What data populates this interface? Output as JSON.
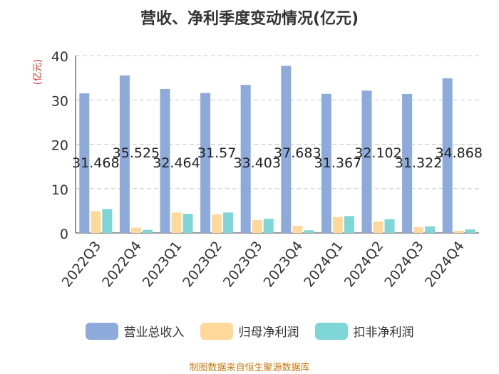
{
  "chart_data": {
    "type": "bar",
    "title": "营收、净利季度变动情况(亿元)",
    "ylabel": "(亿元)",
    "ylim": [
      0,
      40
    ],
    "yticks": [
      0,
      10,
      20,
      30,
      40
    ],
    "grid": true,
    "legend_position": "bottom",
    "categories": [
      "2022Q3",
      "2022Q4",
      "2023Q1",
      "2023Q2",
      "2023Q3",
      "2023Q4",
      "2024Q1",
      "2024Q2",
      "2024Q3",
      "2024Q4"
    ],
    "series": [
      {
        "name": "营业总收入",
        "color": "#8eaadb",
        "values": [
          31.468,
          35.525,
          32.464,
          31.57,
          33.403,
          37.683,
          31.367,
          32.102,
          31.322,
          34.868
        ],
        "labels": [
          "31.468",
          "35.525",
          "32.464",
          "31.57",
          "33.403",
          "37.683",
          "31.367",
          "32.102",
          "31.322",
          "34.868"
        ]
      },
      {
        "name": "归母净利润",
        "color": "#ffd89a",
        "values": [
          4.9,
          1.2,
          4.6,
          4.2,
          2.9,
          1.6,
          3.6,
          2.6,
          1.3,
          0.5
        ]
      },
      {
        "name": "扣非净利润",
        "color": "#7fd6d6",
        "values": [
          5.4,
          0.7,
          4.3,
          4.6,
          3.2,
          0.6,
          3.8,
          3.1,
          1.5,
          0.8
        ]
      }
    ]
  },
  "source": "制图数据来自恒生聚源数据库"
}
